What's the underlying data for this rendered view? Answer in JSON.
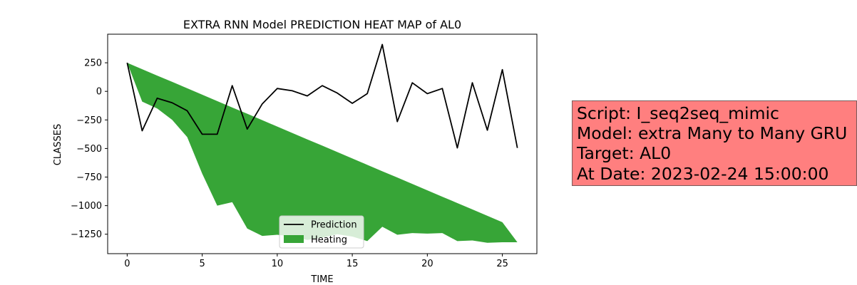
{
  "chart_data": {
    "type": "line",
    "title": "EXTRA RNN Model PREDICTION HEAT MAP of AL0",
    "xlabel": "TIME",
    "ylabel": "CLASSES",
    "xlim": [
      -1.3,
      27.3
    ],
    "ylim": [
      -1420,
      500
    ],
    "xticks": [
      0,
      5,
      10,
      15,
      20,
      25
    ],
    "yticks": [
      250,
      0,
      -250,
      -500,
      -750,
      -1000,
      -1250
    ],
    "ytick_labels": [
      "250",
      "0",
      "−250",
      "−500",
      "−750",
      "−1000",
      "−1250"
    ],
    "legend_position": "lower center",
    "series": [
      {
        "name": "Prediction",
        "kind": "line",
        "color": "#000000",
        "x": [
          0,
          1,
          2,
          3,
          4,
          5,
          6,
          7,
          8,
          9,
          10,
          11,
          12,
          13,
          14,
          15,
          16,
          17,
          18,
          19,
          20,
          21,
          22,
          23,
          24,
          25,
          26
        ],
        "values": [
          250,
          -345,
          -60,
          -100,
          -170,
          -375,
          -375,
          50,
          -330,
          -110,
          25,
          5,
          -40,
          50,
          -15,
          -105,
          -20,
          410,
          -265,
          75,
          -20,
          25,
          -495,
          75,
          -340,
          190,
          -495
        ]
      },
      {
        "name": "Heating",
        "kind": "fill_between",
        "color": "#2ca02c",
        "alpha": 0.95,
        "x": [
          0,
          1,
          2,
          3,
          4,
          5,
          6,
          7,
          8,
          9,
          10,
          11,
          12,
          13,
          14,
          15,
          16,
          17,
          18,
          19,
          20,
          21,
          22,
          23,
          24,
          25,
          26
        ],
        "upper": [
          250,
          194,
          138,
          83,
          27,
          -29,
          -85,
          -141,
          -196,
          -252,
          -308,
          -364,
          -420,
          -475,
          -531,
          -587,
          -643,
          -699,
          -754,
          -810,
          -866,
          -922,
          -977,
          -1033,
          -1089,
          -1145,
          -1320
        ],
        "lower": [
          250,
          -90,
          -150,
          -250,
          -400,
          -720,
          -1000,
          -970,
          -1200,
          -1265,
          -1255,
          -1270,
          -1300,
          -1280,
          -1250,
          -1270,
          -1310,
          -1185,
          -1255,
          -1240,
          -1245,
          -1240,
          -1310,
          -1305,
          -1325,
          -1320,
          -1320
        ]
      }
    ]
  },
  "info_box": {
    "lines": [
      "Script: I_seq2seq_mimic",
      "Model: extra Many to Many GRU",
      "Target: AL0",
      "At Date: 2023-02-24 15:00:00"
    ]
  }
}
